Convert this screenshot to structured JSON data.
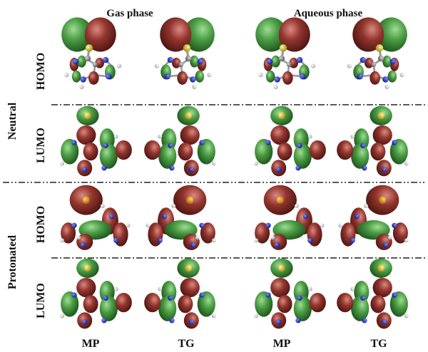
{
  "column_headers": [
    {
      "label": "Gas phase"
    },
    {
      "label": "Aqueous phase"
    }
  ],
  "column_footers": [
    "MP",
    "TG",
    "MP",
    "TG"
  ],
  "groups": [
    {
      "label": "Neutral",
      "rows": [
        {
          "label": "HOMO",
          "orbital": "homo-neutral"
        },
        {
          "label": "LUMO",
          "orbital": "lumo"
        }
      ]
    },
    {
      "label": "Protonated",
      "rows": [
        {
          "label": "HOMO",
          "orbital": "homo-protonated"
        },
        {
          "label": "LUMO",
          "orbital": "lumo"
        }
      ]
    }
  ],
  "colors": {
    "lobe_green": "#3f8f3b",
    "lobe_red": "#8e2f2a",
    "atom_sulfur": "#d4c21f",
    "atom_nitrogen": "#2233c8",
    "atom_hydrogen": "#eeeeee",
    "atom_carbon": "#8c8c8c",
    "bond": "#9a9a9a"
  }
}
